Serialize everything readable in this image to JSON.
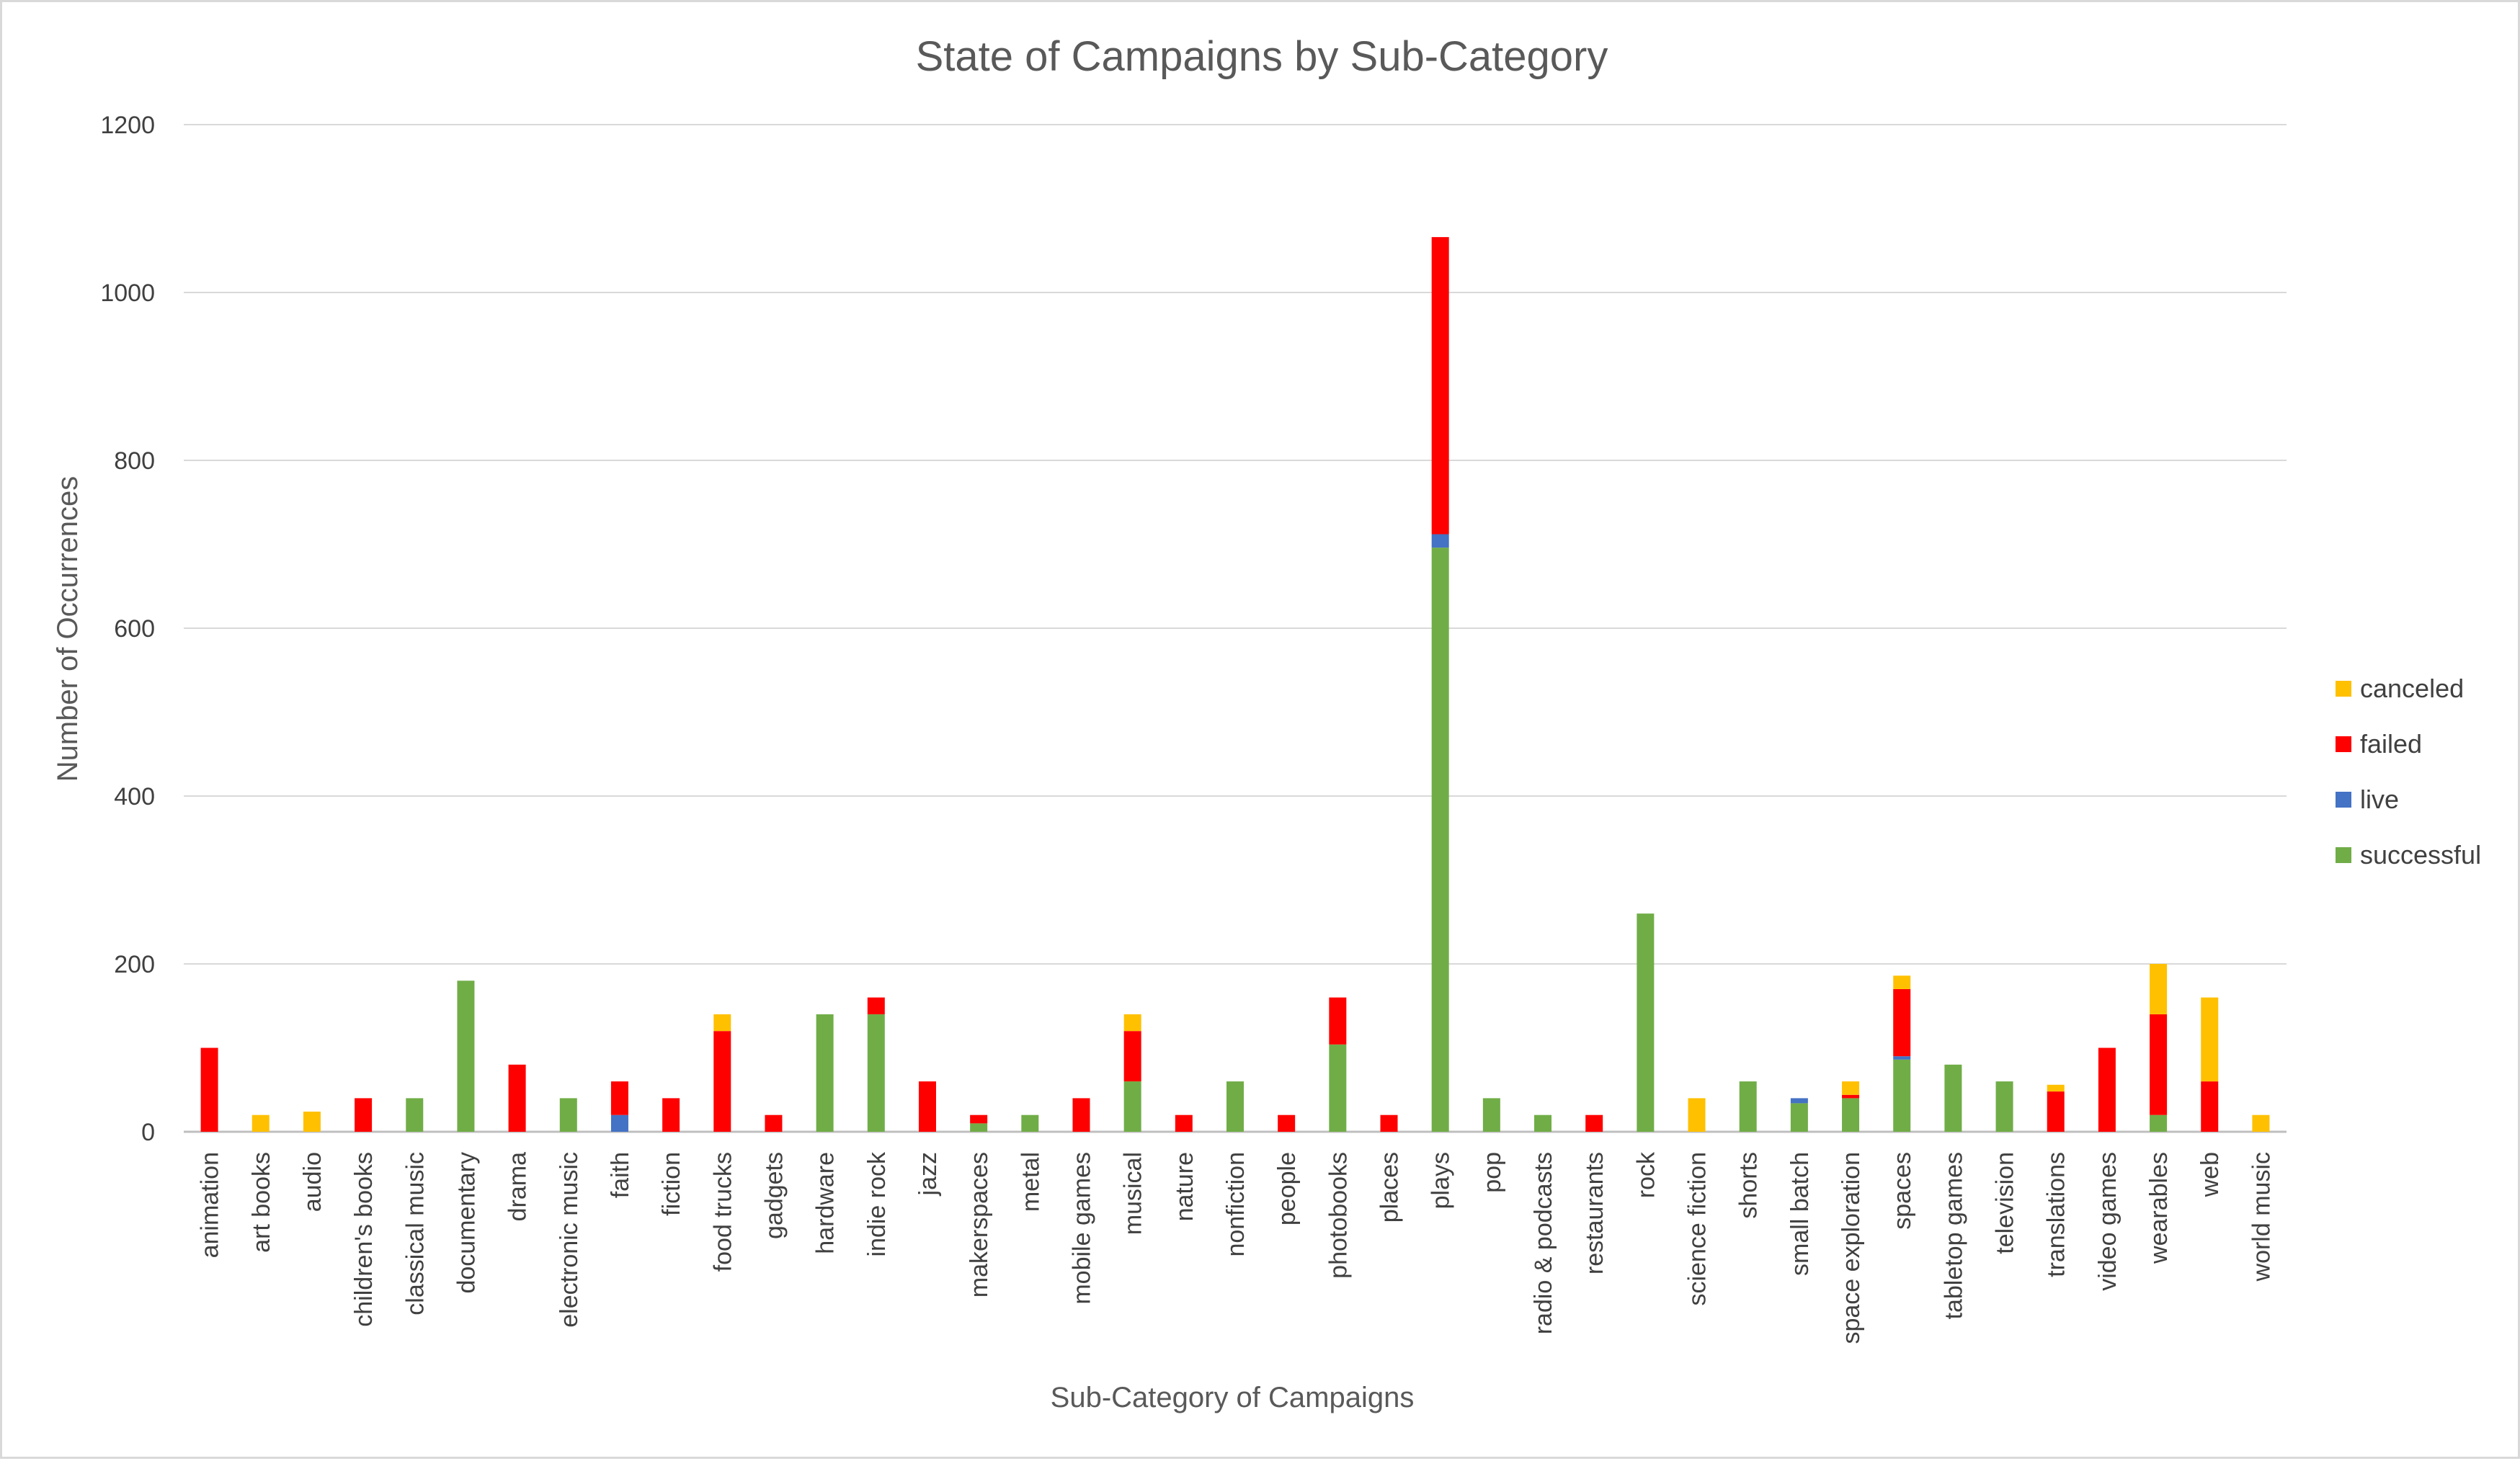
{
  "chart_data": {
    "type": "bar",
    "stacked": true,
    "title": "State of Campaigns by Sub-Category",
    "xlabel": "Sub-Category of Campaigns",
    "ylabel": "Number of Occurrences",
    "ylim": [
      0,
      1200
    ],
    "yticks": [
      0,
      200,
      400,
      600,
      800,
      1000,
      1200
    ],
    "grid": true,
    "legend": "right",
    "categories": [
      "animation",
      "art books",
      "audio",
      "children's books",
      "classical music",
      "documentary",
      "drama",
      "electronic music",
      "faith",
      "fiction",
      "food trucks",
      "gadgets",
      "hardware",
      "indie rock",
      "jazz",
      "makerspaces",
      "metal",
      "mobile games",
      "musical",
      "nature",
      "nonfiction",
      "people",
      "photobooks",
      "places",
      "plays",
      "pop",
      "radio & podcasts",
      "restaurants",
      "rock",
      "science fiction",
      "shorts",
      "small batch",
      "space exploration",
      "spaces",
      "tabletop games",
      "television",
      "translations",
      "video games",
      "wearables",
      "web",
      "world music"
    ],
    "series": [
      {
        "name": "successful",
        "color": "#70ad47",
        "values": [
          0,
          0,
          0,
          0,
          40,
          180,
          0,
          40,
          0,
          0,
          0,
          0,
          140,
          140,
          0,
          10,
          20,
          0,
          60,
          0,
          60,
          0,
          104,
          0,
          696,
          40,
          20,
          0,
          260,
          0,
          60,
          34,
          40,
          86,
          80,
          60,
          0,
          0,
          20,
          0,
          0
        ]
      },
      {
        "name": "live",
        "color": "#4472c4",
        "values": [
          0,
          0,
          0,
          0,
          0,
          0,
          0,
          0,
          20,
          0,
          0,
          0,
          0,
          0,
          0,
          0,
          0,
          0,
          0,
          0,
          0,
          0,
          0,
          0,
          16,
          0,
          0,
          0,
          0,
          0,
          0,
          6,
          0,
          4,
          0,
          0,
          0,
          0,
          0,
          0,
          0
        ]
      },
      {
        "name": "failed",
        "color": "#ff0000",
        "values": [
          100,
          0,
          0,
          40,
          0,
          0,
          80,
          0,
          40,
          40,
          120,
          20,
          0,
          20,
          60,
          10,
          0,
          40,
          60,
          20,
          0,
          20,
          56,
          20,
          354,
          0,
          0,
          20,
          0,
          0,
          0,
          0,
          4,
          80,
          0,
          0,
          48,
          100,
          120,
          60,
          0
        ]
      },
      {
        "name": "canceled",
        "color": "#ffc000",
        "values": [
          0,
          20,
          24,
          0,
          0,
          0,
          0,
          0,
          0,
          0,
          20,
          0,
          0,
          0,
          0,
          0,
          0,
          0,
          20,
          0,
          0,
          0,
          0,
          0,
          0,
          0,
          0,
          0,
          0,
          40,
          0,
          0,
          16,
          16,
          0,
          0,
          8,
          0,
          60,
          100,
          20
        ]
      }
    ],
    "legend_order": [
      "canceled",
      "failed",
      "live",
      "successful"
    ]
  }
}
